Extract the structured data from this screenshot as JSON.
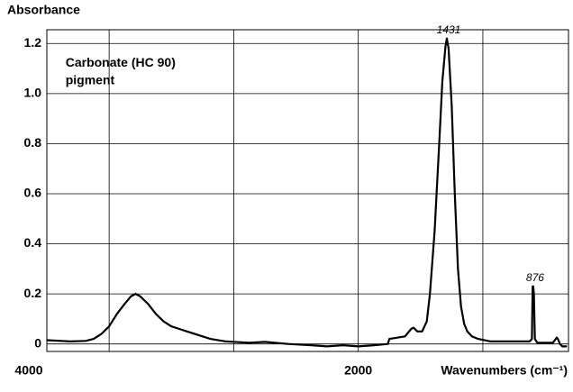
{
  "chart_data": {
    "type": "line",
    "y_label": "Absorbance",
    "x_label": "Wavenumbers (cm⁻¹)",
    "annotations": [
      {
        "text": "Carbonate (HC 90)",
        "x": 3880,
        "y": 1.12
      },
      {
        "text": "pigment",
        "x": 3880,
        "y": 1.05
      },
      {
        "text": "1431",
        "x": 1431,
        "y": 1.22
      },
      {
        "text": "876",
        "x": 876,
        "y": 0.23
      }
    ],
    "xlim": [
      4000,
      650
    ],
    "xticks": [
      4000,
      2000
    ],
    "xgrid": [
      3600,
      2800,
      2000,
      1200
    ],
    "ylim": [
      -0.03,
      1.255
    ],
    "yticks": [
      0,
      0.2,
      0.4,
      0.6,
      0.8,
      {
        "value": 1,
        "label": "1.0"
      },
      1.2
    ],
    "grid": true,
    "series": [
      {
        "color": "#000000",
        "x": [
          4000,
          3850,
          3750,
          3700,
          3650,
          3600,
          3550,
          3500,
          3460,
          3430,
          3400,
          3350,
          3300,
          3250,
          3200,
          3150,
          3100,
          3050,
          2950,
          2850,
          2700,
          2600,
          2450,
          2300,
          2200,
          2100,
          2000,
          1900,
          1810,
          1800,
          1700,
          1660,
          1646,
          1620,
          1590,
          1560,
          1540,
          1510,
          1480,
          1460,
          1440,
          1431,
          1420,
          1400,
          1380,
          1360,
          1340,
          1320,
          1300,
          1270,
          1230,
          1150,
          1000,
          900,
          885,
          880,
          876,
          872,
          866,
          850,
          750,
          725,
          718,
          705,
          690,
          660
        ],
        "values": [
          0.015,
          0.01,
          0.012,
          0.02,
          0.04,
          0.07,
          0.12,
          0.16,
          0.19,
          0.2,
          0.19,
          0.16,
          0.12,
          0.09,
          0.07,
          0.06,
          0.05,
          0.04,
          0.02,
          0.01,
          0.005,
          0.008,
          0.0,
          -0.005,
          -0.01,
          -0.005,
          -0.01,
          -0.005,
          0.0,
          0.02,
          0.03,
          0.06,
          0.065,
          0.05,
          0.05,
          0.09,
          0.2,
          0.45,
          0.8,
          1.05,
          1.19,
          1.22,
          1.18,
          0.95,
          0.6,
          0.3,
          0.15,
          0.08,
          0.05,
          0.03,
          0.02,
          0.01,
          0.01,
          0.01,
          0.02,
          0.23,
          0.23,
          0.2,
          0.02,
          0.005,
          0.005,
          0.025,
          0.02,
          0.0,
          -0.01,
          -0.01
        ]
      }
    ]
  }
}
